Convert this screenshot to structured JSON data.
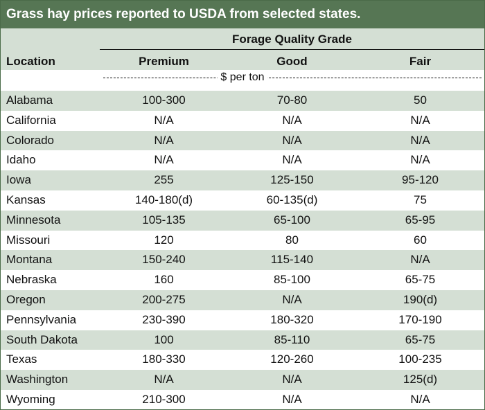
{
  "title": "Grass hay prices reported to USDA from selected states.",
  "header": {
    "group": "Forage Quality Grade",
    "location": "Location",
    "premium": "Premium",
    "good": "Good",
    "fair": "Fair"
  },
  "unit": "$ per ton",
  "colors": {
    "title_bg": "#567654",
    "shade": "#d4dfd4"
  },
  "rows": [
    {
      "location": "Alabama",
      "premium": "100-300",
      "good": "70-80",
      "fair": "50"
    },
    {
      "location": "California",
      "premium": "N/A",
      "good": "N/A",
      "fair": "N/A"
    },
    {
      "location": "Colorado",
      "premium": "N/A",
      "good": "N/A",
      "fair": "N/A"
    },
    {
      "location": "Idaho",
      "premium": "N/A",
      "good": "N/A",
      "fair": "N/A"
    },
    {
      "location": "Iowa",
      "premium": "255",
      "good": "125-150",
      "fair": "95-120"
    },
    {
      "location": "Kansas",
      "premium": "140-180(d)",
      "good": "60-135(d)",
      "fair": "75"
    },
    {
      "location": "Minnesota",
      "premium": "105-135",
      "good": "65-100",
      "fair": "65-95"
    },
    {
      "location": "Missouri",
      "premium": "120",
      "good": "80",
      "fair": "60"
    },
    {
      "location": "Montana",
      "premium": "150-240",
      "good": "115-140",
      "fair": "N/A"
    },
    {
      "location": "Nebraska",
      "premium": "160",
      "good": "85-100",
      "fair": "65-75"
    },
    {
      "location": "Oregon",
      "premium": "200-275",
      "good": "N/A",
      "fair": "190(d)"
    },
    {
      "location": "Pennsylvania",
      "premium": "230-390",
      "good": "180-320",
      "fair": "170-190"
    },
    {
      "location": "South Dakota",
      "premium": "100",
      "good": "85-110",
      "fair": "65-75"
    },
    {
      "location": "Texas",
      "premium": "180-330",
      "good": "120-260",
      "fair": "100-235"
    },
    {
      "location": "Washington",
      "premium": "N/A",
      "good": "N/A",
      "fair": "125(d)"
    },
    {
      "location": "Wyoming",
      "premium": "210-300",
      "good": "N/A",
      "fair": "N/A"
    }
  ]
}
